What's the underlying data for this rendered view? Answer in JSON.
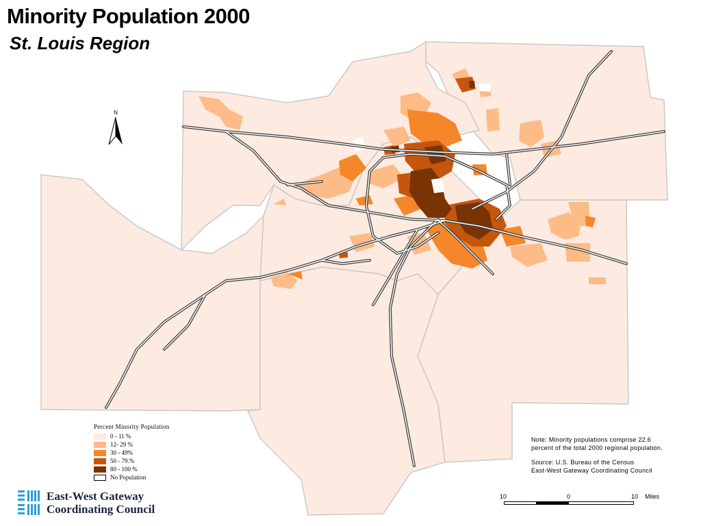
{
  "title": "Minority Population 2000",
  "subtitle": "St. Louis Region",
  "north_label": "N",
  "legend": {
    "title": "Percent Minority Population",
    "classes": [
      {
        "label": "0 - 11 %",
        "color": "#fdeae0"
      },
      {
        "label": "12- 29 %",
        "color": "#fdbb87"
      },
      {
        "label": "30 - 49%",
        "color": "#f5862a"
      },
      {
        "label": "50 - 79.%",
        "color": "#c4570d"
      },
      {
        "label": "80 - 100 %",
        "color": "#7a3305"
      },
      {
        "label": "No Population",
        "color": "#ffffff"
      }
    ]
  },
  "note": {
    "line1": "Note: Minority populations comprise 22.6",
    "line2": "percent of the total 2000 regional population.",
    "line3": "Source: U.S. Bureau of the Census",
    "line4": "East-West Gateway Coordinating Council"
  },
  "scale": {
    "left_label": "10",
    "mid_label": "0",
    "right_label": "10",
    "unit": "Miles"
  },
  "logo": {
    "line1": "East-West Gateway",
    "line2": "Coordinating Council",
    "color": "#1b2440"
  }
}
